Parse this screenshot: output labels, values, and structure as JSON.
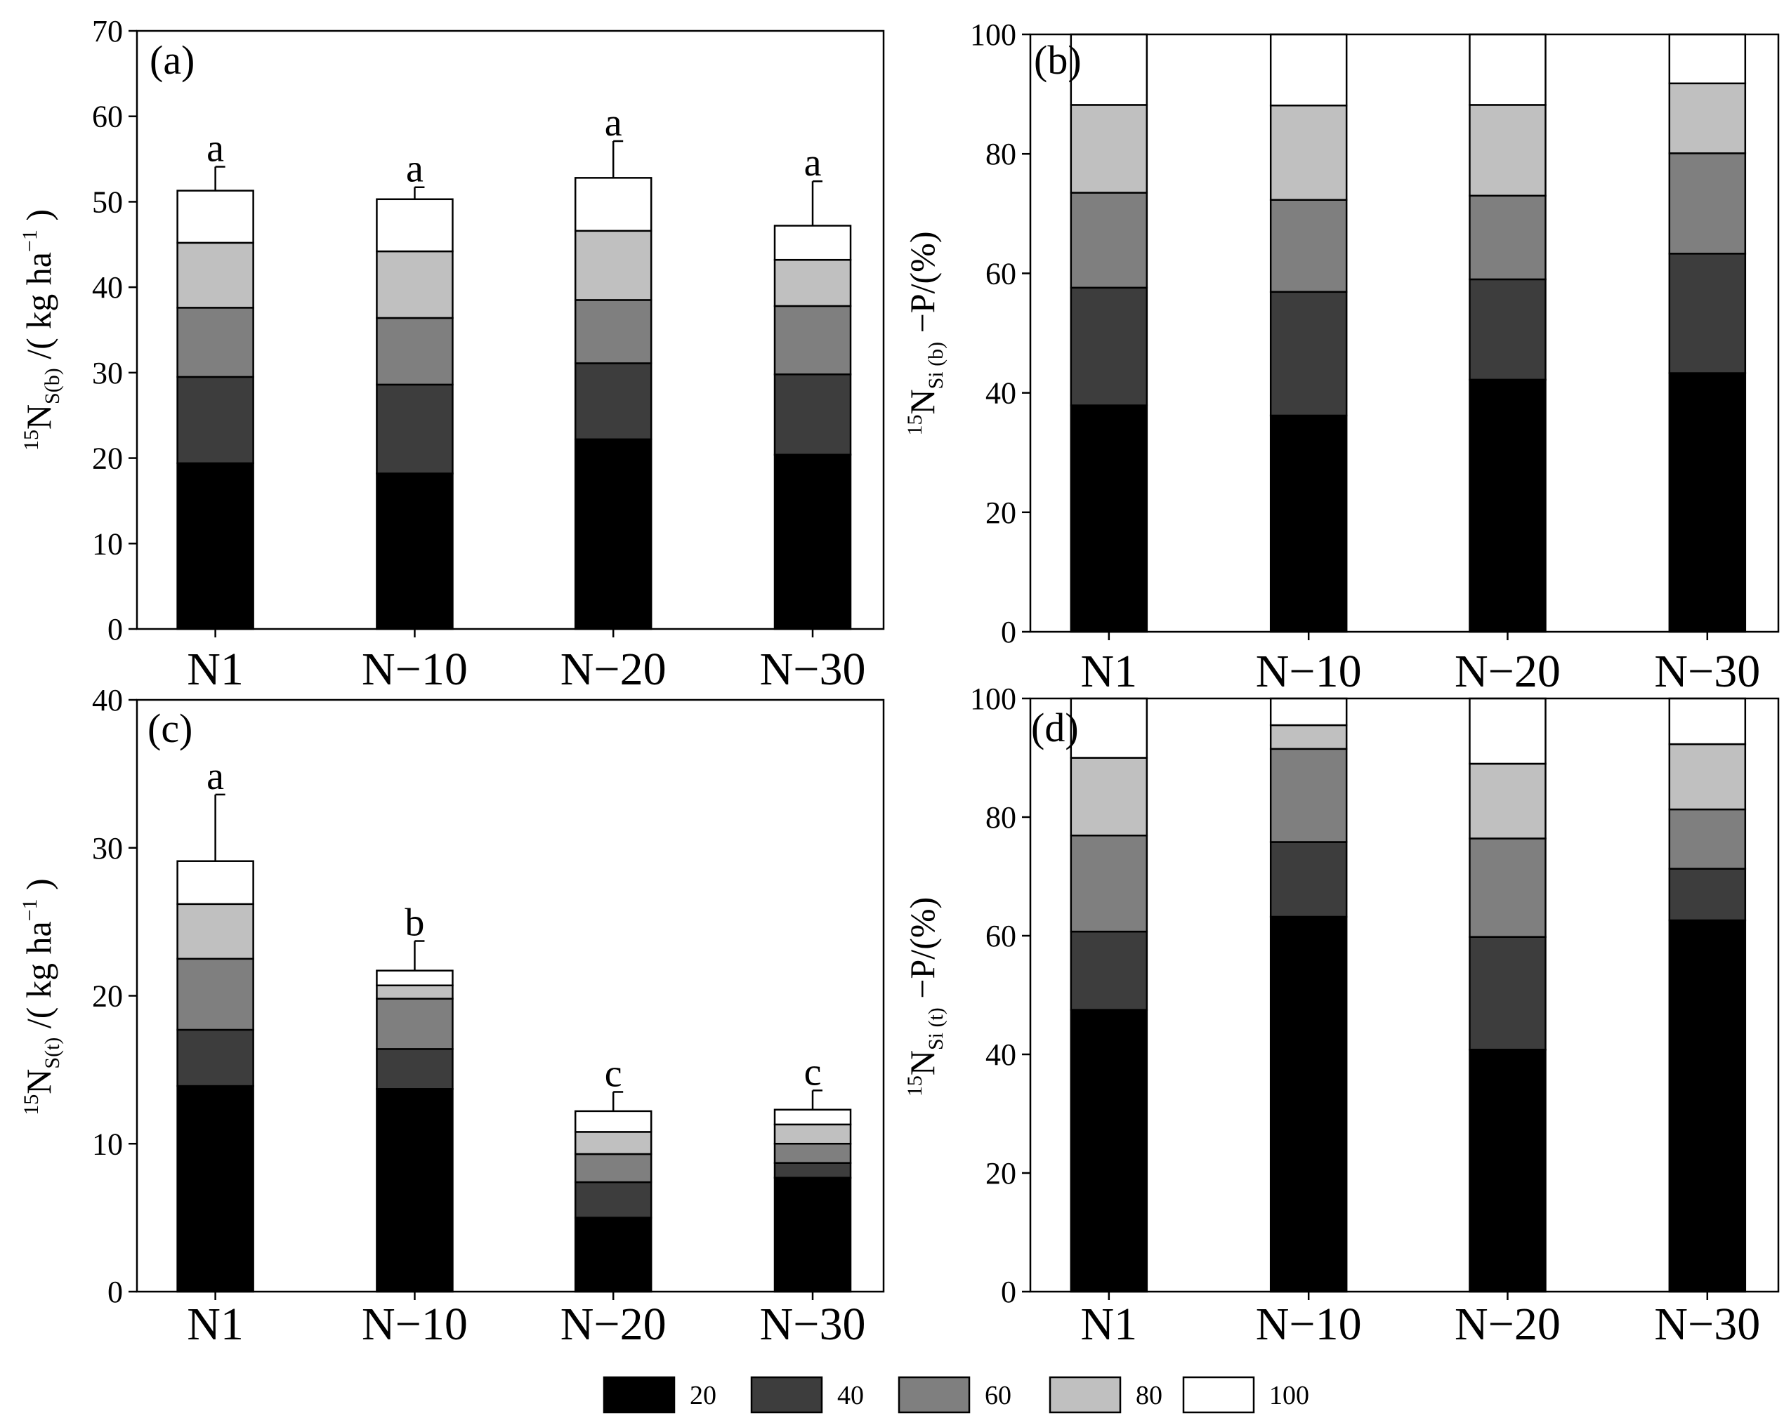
{
  "legend_title": "",
  "legend": [
    {
      "label": "20",
      "color": "#000000"
    },
    {
      "label": "40",
      "color": "#3d3d3d"
    },
    {
      "label": "60",
      "color": "#7f7f7f"
    },
    {
      "label": "80",
      "color": "#c0c0c0"
    },
    {
      "label": "100",
      "color": "#ffffff"
    }
  ],
  "chart_data": [
    {
      "type": "bar",
      "stacked": true,
      "panel_label": "(a)",
      "ylabel": {
        "sup": "15",
        "main": "N",
        "sub": "S(b)",
        "rest": " /( kg ha",
        "exp": "−1",
        "close": " )"
      },
      "ylim": [
        0,
        70
      ],
      "yticks": [
        0,
        10,
        20,
        30,
        40,
        50,
        60,
        70
      ],
      "categories": [
        "N1",
        "N−10",
        "N−20",
        "N−30"
      ],
      "series": [
        {
          "name": "20",
          "values": [
            19.4,
            18.2,
            22.2,
            20.4
          ]
        },
        {
          "name": "40",
          "values": [
            10.1,
            10.4,
            8.9,
            9.4
          ]
        },
        {
          "name": "60",
          "values": [
            8.1,
            7.8,
            7.4,
            8.0
          ]
        },
        {
          "name": "80",
          "values": [
            7.6,
            7.8,
            8.1,
            5.4
          ]
        },
        {
          "name": "100",
          "values": [
            6.1,
            6.1,
            6.2,
            4.0
          ]
        }
      ],
      "errors": [
        2.8,
        1.4,
        4.3,
        5.2
      ],
      "significance": [
        "a",
        "a",
        "a",
        "a"
      ]
    },
    {
      "type": "bar",
      "stacked": true,
      "panel_label": "(b)",
      "ylabel": {
        "sup": "15",
        "main": "N",
        "sub": "Si (b)",
        "rest": " −P/(%)"
      },
      "ylim": [
        0,
        100
      ],
      "yticks": [
        0,
        20,
        40,
        60,
        80,
        100
      ],
      "categories": [
        "N1",
        "N−10",
        "N−20",
        "N−30"
      ],
      "series": [
        {
          "name": "20",
          "values": [
            37.9,
            36.2,
            42.2,
            43.3
          ]
        },
        {
          "name": "40",
          "values": [
            19.7,
            20.7,
            16.8,
            20.0
          ]
        },
        {
          "name": "60",
          "values": [
            15.9,
            15.4,
            14.0,
            16.8
          ]
        },
        {
          "name": "80",
          "values": [
            14.7,
            15.8,
            15.2,
            11.7
          ]
        },
        {
          "name": "100",
          "values": [
            11.8,
            11.9,
            11.8,
            8.2
          ]
        }
      ]
    },
    {
      "type": "bar",
      "stacked": true,
      "panel_label": "(c)",
      "ylabel": {
        "sup": "15",
        "main": "N",
        "sub": "S(t)",
        "rest": " /( kg ha",
        "exp": "−1",
        "close": " )"
      },
      "ylim": [
        0,
        40
      ],
      "yticks": [
        0,
        10,
        20,
        30,
        40
      ],
      "categories": [
        "N1",
        "N−10",
        "N−20",
        "N−30"
      ],
      "series": [
        {
          "name": "20",
          "values": [
            13.9,
            13.7,
            5.0,
            7.7
          ]
        },
        {
          "name": "40",
          "values": [
            3.8,
            2.7,
            2.4,
            1.0
          ]
        },
        {
          "name": "60",
          "values": [
            4.8,
            3.4,
            1.9,
            1.3
          ]
        },
        {
          "name": "80",
          "values": [
            3.7,
            0.9,
            1.5,
            1.3
          ]
        },
        {
          "name": "100",
          "values": [
            2.9,
            1.0,
            1.4,
            1.0
          ]
        }
      ],
      "errors": [
        4.5,
        2.0,
        1.3,
        1.3
      ],
      "significance": [
        "a",
        "b",
        "c",
        "c"
      ]
    },
    {
      "type": "bar",
      "stacked": true,
      "panel_label": "(d)",
      "ylabel": {
        "sup": "15",
        "main": "N",
        "sub": "Si (t)",
        "rest": " −P/(%)"
      },
      "ylim": [
        0,
        100
      ],
      "yticks": [
        0,
        20,
        40,
        60,
        80,
        100
      ],
      "categories": [
        "N1",
        "N−10",
        "N−20",
        "N−30"
      ],
      "series": [
        {
          "name": "20",
          "values": [
            47.5,
            63.2,
            40.8,
            62.6
          ]
        },
        {
          "name": "40",
          "values": [
            13.2,
            12.6,
            19.0,
            8.7
          ]
        },
        {
          "name": "60",
          "values": [
            16.2,
            15.7,
            16.6,
            10.0
          ]
        },
        {
          "name": "80",
          "values": [
            13.1,
            4.0,
            12.6,
            11.0
          ]
        },
        {
          "name": "100",
          "values": [
            10.0,
            4.5,
            11.0,
            7.7
          ]
        }
      ]
    }
  ]
}
